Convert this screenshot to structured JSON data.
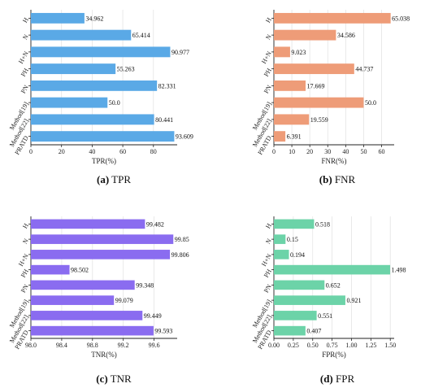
{
  "chart_data": [
    {
      "type": "bar",
      "orientation": "horizontal",
      "caption_letter": "(a)",
      "caption_text": "TPR",
      "xlabel": "TPR(%)",
      "categories": [
        "H",
        "N",
        "H+N",
        "PH",
        "PN",
        "Method[19]",
        "Method[22]",
        "PRATD"
      ],
      "values": [
        34.962,
        65.414,
        90.977,
        55.263,
        82.331,
        50.0,
        80.441,
        93.609
      ],
      "value_labels": [
        "34.962",
        "65.414",
        "90.977",
        "55.263",
        "82.331",
        "50.0",
        "80.441",
        "93.609"
      ],
      "xlim": [
        0,
        95.5
      ],
      "xticks": [
        0,
        20,
        40,
        60,
        80
      ],
      "xtick_labels": [
        "0",
        "20",
        "40",
        "60",
        "80"
      ],
      "color": "#5aa9e6"
    },
    {
      "type": "bar",
      "orientation": "horizontal",
      "caption_letter": "(b)",
      "caption_text": "FNR",
      "xlabel": "FNR(%)",
      "categories": [
        "H",
        "N",
        "H+N",
        "PH",
        "PN",
        "Method[19]",
        "Method[22]",
        "PRATD"
      ],
      "values": [
        65.038,
        34.586,
        9.023,
        44.737,
        17.669,
        50.0,
        19.559,
        6.391
      ],
      "value_labels": [
        "65.038",
        "34.586",
        "9.023",
        "44.737",
        "17.669",
        "50.0",
        "19.559",
        "6.391"
      ],
      "xlim": [
        0,
        67
      ],
      "xticks": [
        0,
        10,
        20,
        30,
        40,
        50,
        60
      ],
      "xtick_labels": [
        "0",
        "10",
        "20",
        "30",
        "40",
        "50",
        "60"
      ],
      "color": "#ee9c78"
    },
    {
      "type": "bar",
      "orientation": "horizontal",
      "caption_letter": "(c)",
      "caption_text": "TNR",
      "xlabel": "TNR(%)",
      "categories": [
        "H",
        "N",
        "H+N",
        "PH",
        "PN",
        "Method[19]",
        "Method[22]",
        "PRATD"
      ],
      "values": [
        99.482,
        99.85,
        99.806,
        98.502,
        99.348,
        99.079,
        99.449,
        99.593
      ],
      "value_labels": [
        "99.482",
        "99.85",
        "99.806",
        "98.502",
        "99.348",
        "99.079",
        "99.449",
        "99.593"
      ],
      "xlim": [
        98.0,
        99.9
      ],
      "xticks": [
        98.0,
        98.4,
        98.8,
        99.2,
        99.6
      ],
      "xtick_labels": [
        "98.0",
        "98.4",
        "98.8",
        "99.2",
        "99.6"
      ],
      "color": "#8a6cf0"
    },
    {
      "type": "bar",
      "orientation": "horizontal",
      "caption_letter": "(d)",
      "caption_text": "FPR",
      "xlabel": "FPR(%)",
      "categories": [
        "H",
        "N",
        "H+N",
        "PH",
        "PN",
        "Method[19]",
        "Method[22]",
        "PRATD"
      ],
      "values": [
        0.518,
        0.15,
        0.194,
        1.498,
        0.652,
        0.921,
        0.551,
        0.407
      ],
      "value_labels": [
        "0.518",
        "0.15",
        "0.194",
        "1.498",
        "0.652",
        "0.921",
        "0.551",
        "0.407"
      ],
      "xlim": [
        0,
        1.55
      ],
      "xticks": [
        0.0,
        0.25,
        0.5,
        0.75,
        1.0,
        1.25,
        1.5
      ],
      "xtick_labels": [
        "0.00",
        "0.25",
        "0.50",
        "0.75",
        "1.00",
        "1.25",
        "1.50"
      ],
      "color": "#6cd3a8"
    }
  ]
}
